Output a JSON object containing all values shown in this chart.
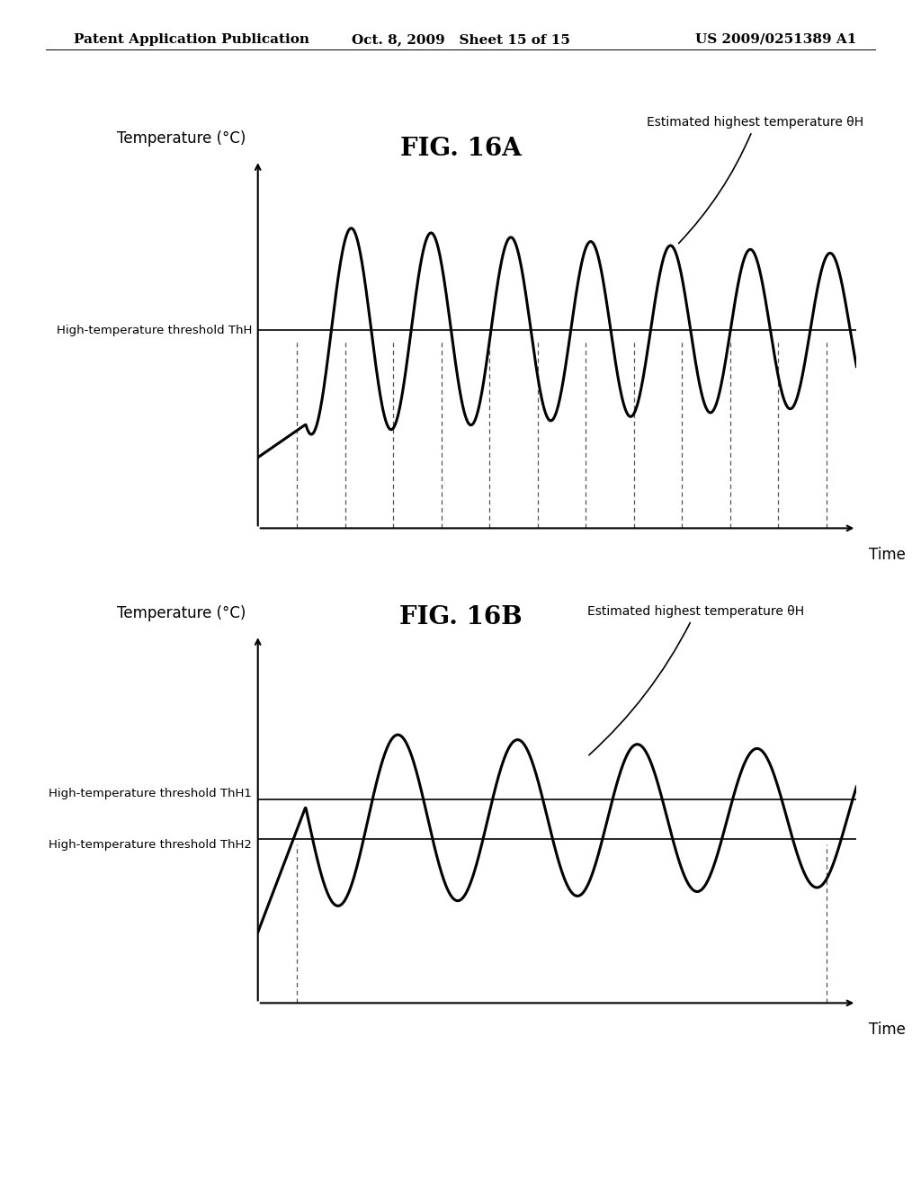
{
  "fig_title_A": "FIG. 16A",
  "fig_title_B": "FIG. 16B",
  "header_left": "Patent Application Publication",
  "header_mid": "Oct. 8, 2009   Sheet 15 of 15",
  "header_right": "US 2009/0251389 A1",
  "ylabel": "Temperature (°C)",
  "xlabel": "Time",
  "threshold_label_A": "High-temperature threshold ThH",
  "threshold_label_B1": "High-temperature threshold ThH1",
  "threshold_label_B2": "High-temperature threshold ThH2",
  "annotation_A": "Estimated highest temperature θH",
  "annotation_B": "Estimated highest temperature θH",
  "threshold_A": 0.5,
  "threshold_B1": 0.52,
  "threshold_B2": 0.38,
  "bg_color": "#ffffff",
  "line_color": "#000000",
  "threshold_color": "#000000",
  "dashed_color": "#555555"
}
